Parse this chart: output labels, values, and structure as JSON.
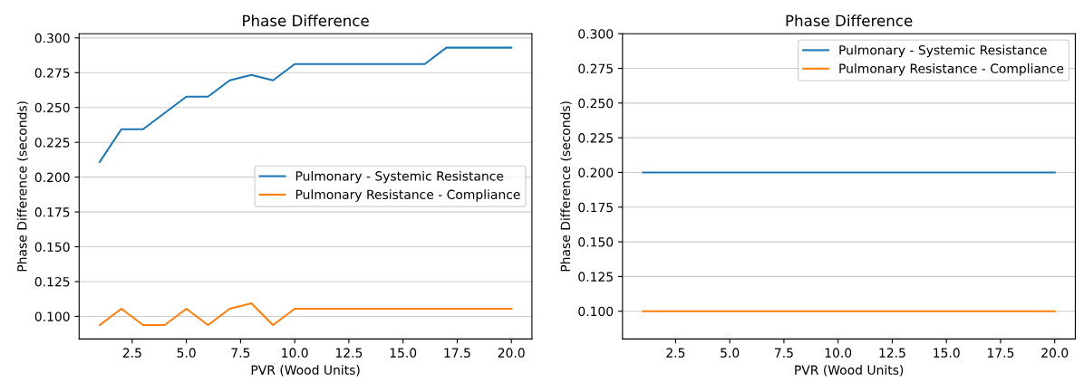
{
  "chart_data": [
    {
      "type": "line",
      "title": "Phase Difference",
      "xlabel": "PVR (Wood Units)",
      "ylabel": "Phase Difference (seconds)",
      "x": [
        1,
        2,
        3,
        4,
        5,
        6,
        7,
        8,
        9,
        10,
        11,
        12,
        13,
        14,
        15,
        16,
        17,
        18,
        19,
        20
      ],
      "series": [
        {
          "name": "Pulmonary - Systemic Resistance",
          "color": "#1f77b4",
          "values": [
            0.2109,
            0.2344,
            0.2344,
            0.2461,
            0.2578,
            0.2578,
            0.2695,
            0.2734,
            0.2695,
            0.2812,
            0.2812,
            0.2812,
            0.2812,
            0.2812,
            0.2812,
            0.2812,
            0.293,
            0.293,
            0.293,
            0.293
          ]
        },
        {
          "name": "Pulmonary Resistance - Compliance",
          "color": "#ff7f0e",
          "values": [
            0.0938,
            0.1055,
            0.0938,
            0.0938,
            0.1055,
            0.0938,
            0.1055,
            0.1094,
            0.0938,
            0.1055,
            0.1055,
            0.1055,
            0.1055,
            0.1055,
            0.1055,
            0.1055,
            0.1055,
            0.1055,
            0.1055,
            0.1055
          ]
        }
      ],
      "xlim": [
        0.05,
        20.95
      ],
      "xticks": [
        {
          "value": 2.5,
          "label": "2.5"
        },
        {
          "value": 5,
          "label": "5.0"
        },
        {
          "value": 7.5,
          "label": "7.5"
        },
        {
          "value": 10,
          "label": "10.0"
        },
        {
          "value": 12.5,
          "label": "12.5"
        },
        {
          "value": 15,
          "label": "15.0"
        },
        {
          "value": 17.5,
          "label": "17.5"
        },
        {
          "value": 20,
          "label": "20.0"
        }
      ],
      "ylim": [
        0.0838,
        0.303
      ],
      "yticks": [
        {
          "value": 0.1,
          "label": "0.100"
        },
        {
          "value": 0.125,
          "label": "0.125"
        },
        {
          "value": 0.15,
          "label": "0.150"
        },
        {
          "value": 0.175,
          "label": "0.175"
        },
        {
          "value": 0.2,
          "label": "0.200"
        },
        {
          "value": 0.225,
          "label": "0.225"
        },
        {
          "value": 0.25,
          "label": "0.250"
        },
        {
          "value": 0.275,
          "label": "0.275"
        },
        {
          "value": 0.3,
          "label": "0.300"
        }
      ],
      "grid": "y",
      "legend": "center right"
    },
    {
      "type": "line",
      "title": "Phase Difference",
      "xlabel": "PVR (Wood Units)",
      "ylabel": "Phase Difference (seconds)",
      "x": [
        1,
        2,
        3,
        4,
        5,
        6,
        7,
        8,
        9,
        10,
        11,
        12,
        13,
        14,
        15,
        16,
        17,
        18,
        19,
        20
      ],
      "series": [
        {
          "name": "Pulmonary - Systemic Resistance",
          "color": "#1f77b4",
          "values": [
            0.2,
            0.2,
            0.2,
            0.2,
            0.2,
            0.2,
            0.2,
            0.2,
            0.2,
            0.2,
            0.2,
            0.2,
            0.2,
            0.2,
            0.2,
            0.2,
            0.2,
            0.2,
            0.2,
            0.2
          ]
        },
        {
          "name": "Pulmonary Resistance - Compliance",
          "color": "#ff7f0e",
          "values": [
            0.1,
            0.1,
            0.1,
            0.1,
            0.1,
            0.1,
            0.1,
            0.1,
            0.1,
            0.1,
            0.1,
            0.1,
            0.1,
            0.1,
            0.1,
            0.1,
            0.1,
            0.1,
            0.1,
            0.1
          ]
        }
      ],
      "xlim": [
        0.05,
        20.95
      ],
      "xticks": [
        {
          "value": 2.5,
          "label": "2.5"
        },
        {
          "value": 5,
          "label": "5.0"
        },
        {
          "value": 7.5,
          "label": "7.5"
        },
        {
          "value": 10,
          "label": "10.0"
        },
        {
          "value": 12.5,
          "label": "12.5"
        },
        {
          "value": 15,
          "label": "15.0"
        },
        {
          "value": 17.5,
          "label": "17.5"
        },
        {
          "value": 20,
          "label": "20.0"
        }
      ],
      "ylim": [
        0.08,
        0.3
      ],
      "yticks": [
        {
          "value": 0.1,
          "label": "0.100"
        },
        {
          "value": 0.125,
          "label": "0.125"
        },
        {
          "value": 0.15,
          "label": "0.150"
        },
        {
          "value": 0.175,
          "label": "0.175"
        },
        {
          "value": 0.2,
          "label": "0.200"
        },
        {
          "value": 0.225,
          "label": "0.225"
        },
        {
          "value": 0.25,
          "label": "0.250"
        },
        {
          "value": 0.275,
          "label": "0.275"
        },
        {
          "value": 0.3,
          "label": "0.300"
        }
      ],
      "grid": "y",
      "legend": "top right"
    }
  ]
}
